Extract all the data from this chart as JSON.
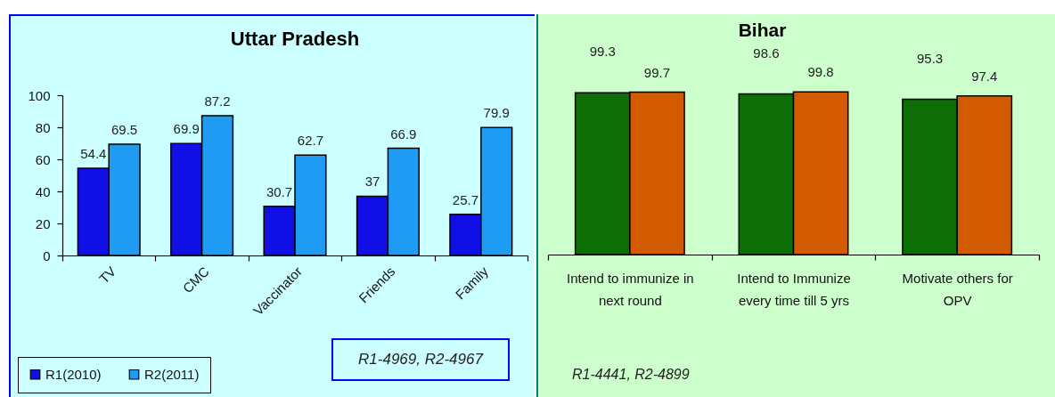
{
  "chart_data": [
    {
      "type": "bar",
      "title": "Uttar Pradesh",
      "categories": [
        "TV",
        "CMC",
        "Vaccinator",
        "Friends",
        "Family"
      ],
      "series": [
        {
          "name": "R1(2010)",
          "color": "#1010e6",
          "values": [
            54.4,
            69.9,
            30.7,
            37,
            25.7
          ]
        },
        {
          "name": "R2(2011)",
          "color": "#1e9bf5",
          "values": [
            69.5,
            87.2,
            62.7,
            66.9,
            79.9
          ]
        }
      ],
      "ylim": [
        0,
        100
      ],
      "yticks": [
        0,
        20,
        40,
        60,
        80,
        100
      ],
      "data_labels": true,
      "legend": "bottom left",
      "annotations": [
        "R1-4969, R2-4967"
      ]
    },
    {
      "type": "bar",
      "title": "Bihar",
      "categories": [
        "Intend to immunize in next round",
        "Intend to Immunize every time till 5 yrs",
        "Motivate others for OPV"
      ],
      "series": [
        {
          "color": "#0d6e06",
          "values": [
            99.3,
            98.6,
            95.3
          ]
        },
        {
          "color": "#d25a00",
          "values": [
            99.7,
            99.8,
            97.4
          ]
        }
      ],
      "tick_labels": "x",
      "data_labels": true,
      "annotations": [
        "R1-4441, R2-4899"
      ]
    }
  ]
}
